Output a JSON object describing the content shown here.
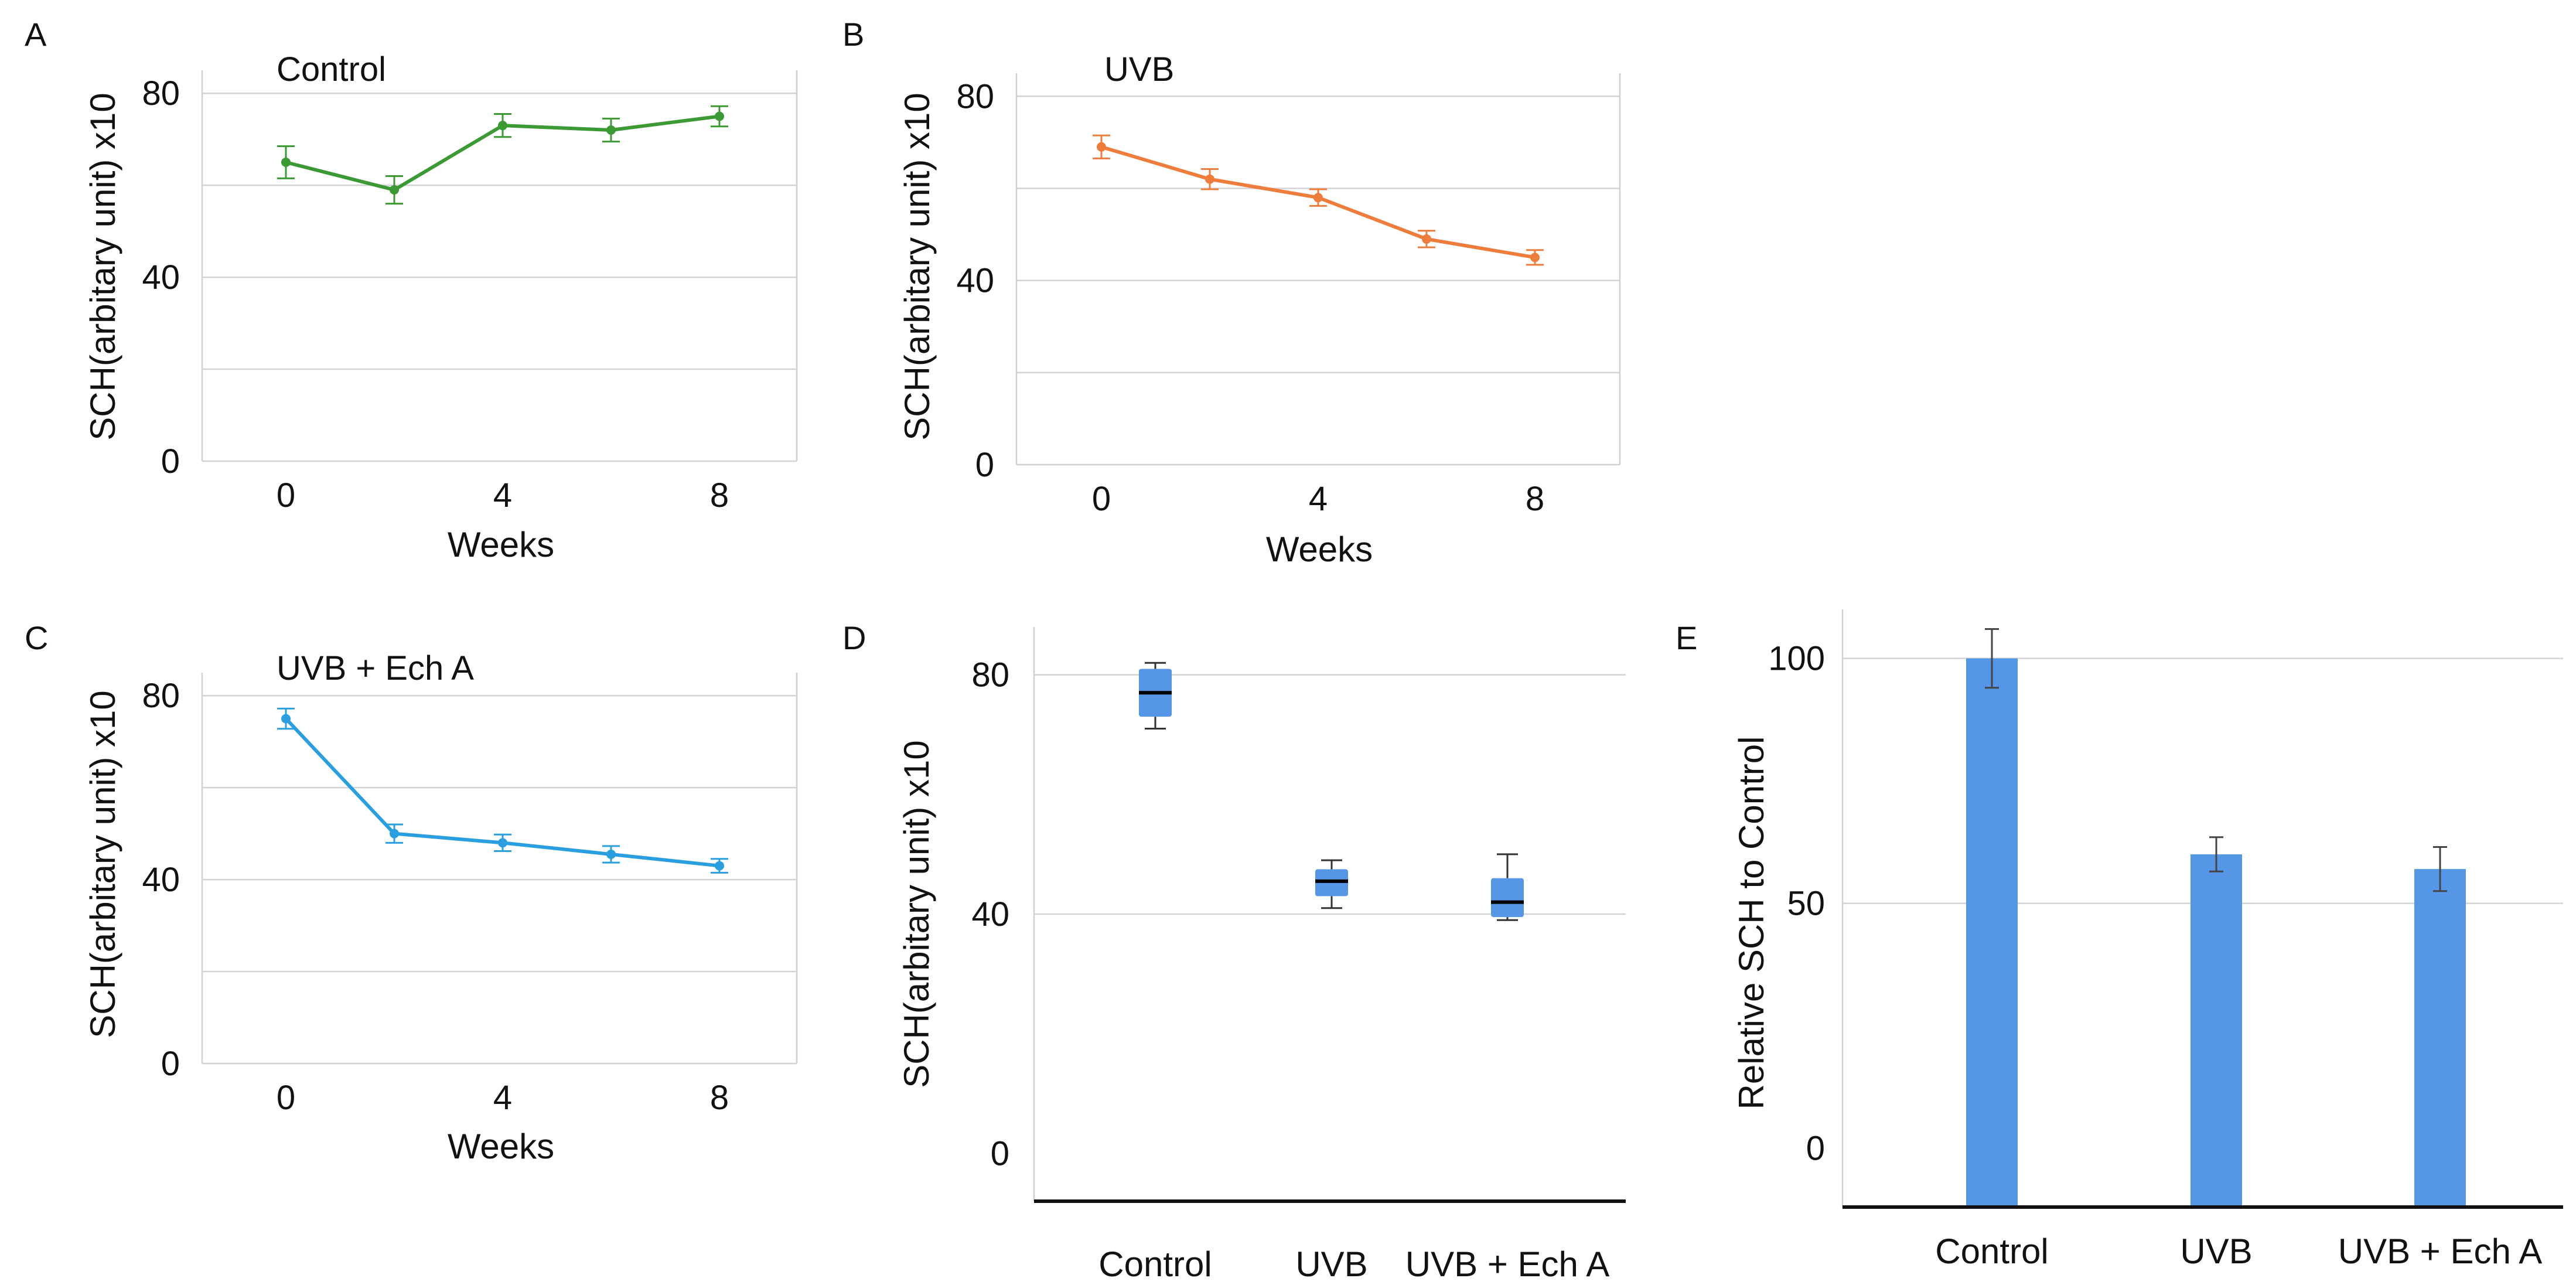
{
  "chart_data": [
    {
      "panel": "A",
      "type": "line",
      "title": "Control",
      "color": "#3c9a35",
      "x": [
        0,
        2,
        4,
        6,
        8
      ],
      "values": [
        65,
        59,
        73,
        72,
        75
      ],
      "errors": [
        3.5,
        3,
        2.5,
        2.5,
        2.2
      ],
      "xlabel": "Weeks",
      "ylabel": "SCH(arbitary unit) x10",
      "xticks": [
        "0",
        "4",
        "8"
      ],
      "yticks": [
        "0",
        "40",
        "80"
      ],
      "ylim": [
        0,
        85
      ]
    },
    {
      "panel": "B",
      "type": "line",
      "title": "UVB",
      "color": "#ee7d3b",
      "x": [
        0,
        2,
        4,
        6,
        8
      ],
      "values": [
        69,
        62,
        58,
        49,
        45
      ],
      "errors": [
        2.5,
        2.2,
        1.8,
        1.8,
        1.6
      ],
      "xlabel": "Weeks",
      "ylabel": "SCH(arbitary unit) x10",
      "xticks": [
        "0",
        "4",
        "8"
      ],
      "yticks": [
        "0",
        "40",
        "80"
      ],
      "ylim": [
        0,
        85
      ]
    },
    {
      "panel": "C",
      "type": "line",
      "title": "UVB + Ech A",
      "color": "#2a9fe0",
      "x": [
        0,
        2,
        4,
        6,
        8
      ],
      "values": [
        75,
        50,
        48,
        45.5,
        43
      ],
      "errors": [
        2.2,
        2,
        1.8,
        1.8,
        1.5
      ],
      "xlabel": "Weeks",
      "ylabel": "SCH(arbitary unit) x10",
      "xticks": [
        "0",
        "4",
        "8"
      ],
      "yticks": [
        "0",
        "40",
        "80"
      ],
      "ylim": [
        0,
        85
      ]
    },
    {
      "panel": "D",
      "type": "box",
      "title": "",
      "color": "#5596e6",
      "categories": [
        "Control",
        "UVB",
        "UVB + Ech A"
      ],
      "boxes": [
        {
          "min": 71,
          "q1": 73,
          "median": 77,
          "q3": 81,
          "max": 82
        },
        {
          "min": 41,
          "q1": 43,
          "median": 45.5,
          "q3": 47.5,
          "max": 49
        },
        {
          "min": 39,
          "q1": 39.5,
          "median": 42,
          "q3": 46,
          "max": 50
        }
      ],
      "ylabel": "SCH(arbitary unit) x10",
      "yticks": [
        "0",
        "40",
        "80"
      ],
      "ylim": [
        -8,
        88
      ]
    },
    {
      "panel": "E",
      "type": "bar",
      "title": "",
      "color": "#5596e6",
      "categories": [
        "Control",
        "UVB",
        "UVB + Ech A"
      ],
      "values": [
        100,
        60,
        57
      ],
      "errors": [
        6,
        3.5,
        4.5
      ],
      "ylabel": "Relative SCH to Control",
      "yticks": [
        "0",
        "50",
        "100"
      ],
      "ylim": [
        -12,
        110
      ]
    }
  ]
}
